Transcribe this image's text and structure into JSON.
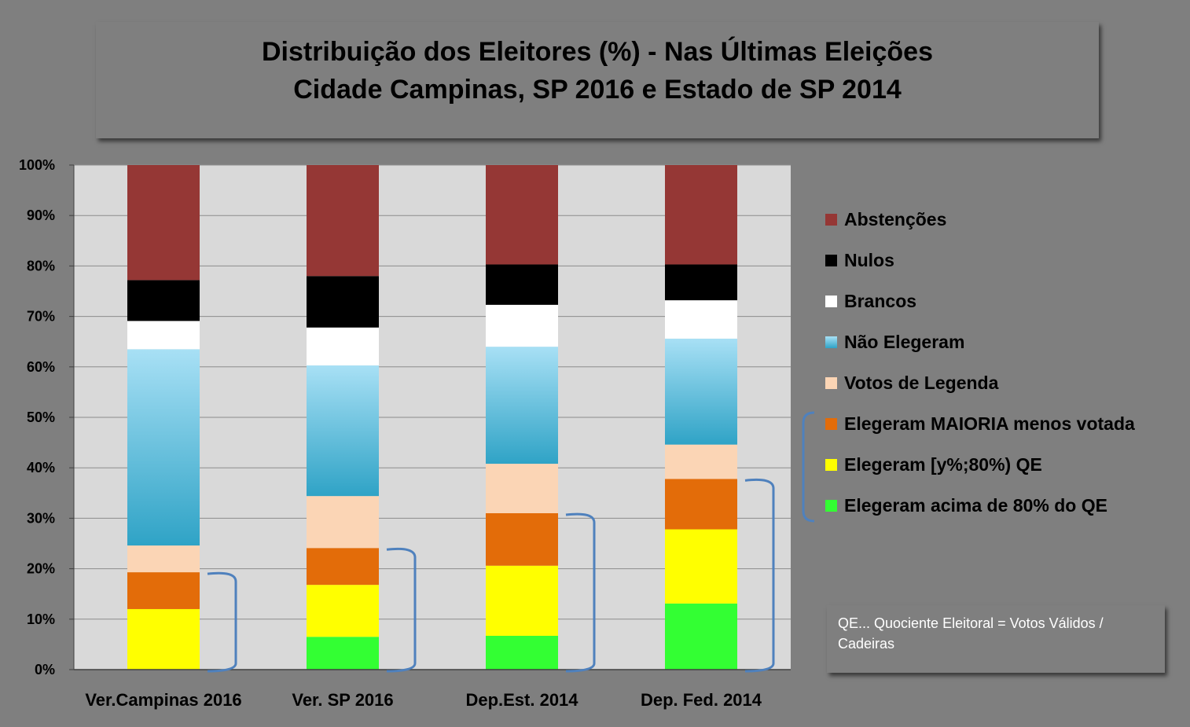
{
  "title": {
    "line1": "Distribuição dos Eleitores (%) - Nas Últimas Eleições",
    "line2": "Cidade Campinas, SP 2016 e Estado de SP 2014"
  },
  "note": "QE... Quociente Eleitoral = Votos Válidos / Cadeiras",
  "colors": {
    "background": "#7f7f7f",
    "plot_area": "#d9d9d9",
    "bracket": "#4f81bd"
  },
  "chart_data": {
    "type": "bar",
    "stacked": true,
    "categories": [
      "Ver.Campinas 2016",
      "Ver. SP 2016",
      "Dep.Est. 2014",
      "Dep. Fed. 2014"
    ],
    "ylim": [
      0,
      100
    ],
    "yticks": [
      "0%",
      "10%",
      "20%",
      "30%",
      "40%",
      "50%",
      "60%",
      "70%",
      "80%",
      "90%",
      "100%"
    ],
    "grid": true,
    "legend_position": "right",
    "series": [
      {
        "name": "Elegeram acima de 80% do QE",
        "color": "#33ff33",
        "values": [
          0,
          6.5,
          6.7,
          13.1
        ]
      },
      {
        "name": "Elegeram [y%;80%) QE",
        "color": "#ffff00",
        "values": [
          12.0,
          10.3,
          13.9,
          14.7
        ]
      },
      {
        "name": "Elegeram MAIORIA menos votada",
        "color": "#e36c09",
        "values": [
          7.3,
          7.3,
          10.4,
          10.0
        ]
      },
      {
        "name": "Votos de Legenda",
        "color": "#fbd5b5",
        "values": [
          5.3,
          10.3,
          9.8,
          6.8
        ]
      },
      {
        "name": "Não Elegeram",
        "color": "#4bacc6",
        "gradient": [
          "#a8e0f5",
          "#2fa3c6"
        ],
        "values": [
          38.9,
          25.9,
          23.2,
          21.0
        ]
      },
      {
        "name": "Brancos",
        "color": "#ffffff",
        "values": [
          5.6,
          7.5,
          8.3,
          7.6
        ]
      },
      {
        "name": "Nulos",
        "color": "#000000",
        "values": [
          8.1,
          10.2,
          8.0,
          7.1
        ]
      },
      {
        "name": "Abstenções",
        "color": "#953735",
        "values": [
          22.8,
          22.0,
          19.7,
          19.7
        ]
      }
    ],
    "legend_order": [
      "Abstenções",
      "Nulos",
      "Brancos",
      "Não Elegeram",
      "Votos de Legenda",
      "Elegeram MAIORIA menos votada",
      "Elegeram [y%;80%) QE",
      "Elegeram acima de 80% do QE"
    ]
  }
}
